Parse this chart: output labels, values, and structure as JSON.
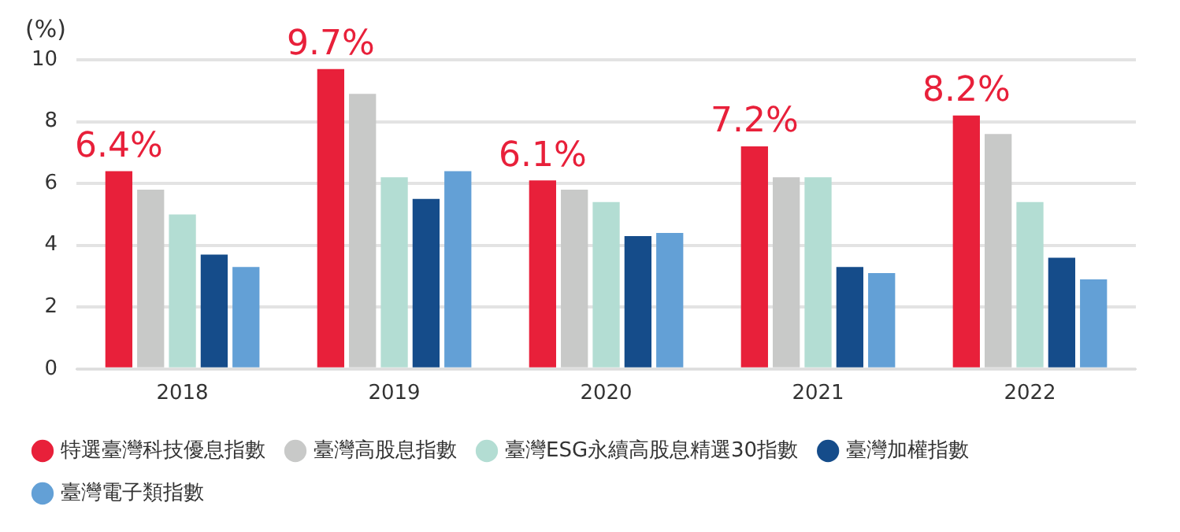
{
  "chart_data": {
    "type": "bar",
    "ylabel": "(%)",
    "categories": [
      "2018",
      "2019",
      "2020",
      "2021",
      "2022"
    ],
    "series": [
      {
        "name": "特選臺灣科技優息指數",
        "color": "#e8203a",
        "values": [
          6.4,
          9.7,
          6.1,
          7.2,
          8.2
        ],
        "value_labels": [
          "6.4%",
          "9.7%",
          "6.1%",
          "7.2%",
          "8.2%"
        ]
      },
      {
        "name": "臺灣高股息指數",
        "color": "#c8c9c8",
        "values": [
          5.8,
          8.9,
          5.8,
          6.2,
          7.6
        ]
      },
      {
        "name": "臺灣ESG永續高股息精選30指數",
        "color": "#b3ddd3",
        "values": [
          5.0,
          6.2,
          5.4,
          6.2,
          5.4
        ]
      },
      {
        "name": "臺灣加權指數",
        "color": "#154c8a",
        "values": [
          3.7,
          5.5,
          4.3,
          3.3,
          3.6
        ]
      },
      {
        "name": "臺灣電子類指數",
        "color": "#63a0d6",
        "values": [
          3.3,
          6.4,
          4.4,
          3.1,
          2.9
        ]
      }
    ],
    "ylim": [
      0,
      10
    ],
    "yticks": [
      0,
      2,
      4,
      6,
      8,
      10
    ],
    "grid": "y",
    "legend": "bottom"
  }
}
